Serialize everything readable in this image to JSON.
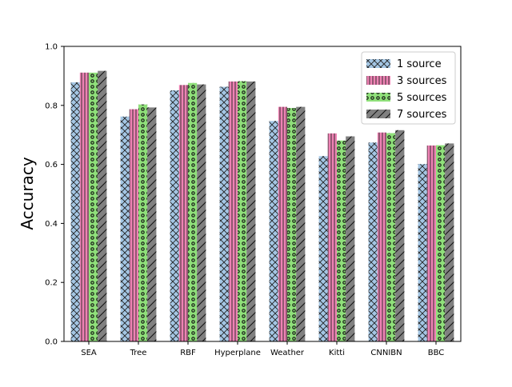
{
  "chart_data": {
    "type": "bar",
    "title": "",
    "xlabel": "",
    "ylabel": "Accuracy",
    "ylim": [
      0.0,
      1.0
    ],
    "yticks": [
      "0.0",
      "0.2",
      "0.4",
      "0.6",
      "0.8",
      "1.0"
    ],
    "grid": false,
    "legend_position": "top-right",
    "categories": [
      "SEA",
      "Tree",
      "RBF",
      "Hyperplane",
      "Weather",
      "Kitti",
      "CNNIBN",
      "BBC"
    ],
    "series": [
      {
        "name": "1 source",
        "color": "#a4c6e4",
        "hatch": "cross-hatch",
        "values": [
          0.878,
          0.762,
          0.851,
          0.863,
          0.747,
          0.628,
          0.674,
          0.601
        ]
      },
      {
        "name": "3 sources",
        "color": "#ee82b4",
        "hatch": "vertical-lines",
        "values": [
          0.911,
          0.787,
          0.869,
          0.881,
          0.795,
          0.705,
          0.708,
          0.664
        ]
      },
      {
        "name": "5 sources",
        "color": "#8fe07a",
        "hatch": "dots",
        "values": [
          0.911,
          0.803,
          0.876,
          0.882,
          0.791,
          0.681,
          0.706,
          0.665
        ]
      },
      {
        "name": "7 sources",
        "color": "#808080",
        "hatch": "diagonal-lines",
        "values": [
          0.917,
          0.793,
          0.871,
          0.881,
          0.795,
          0.695,
          0.716,
          0.671
        ]
      }
    ]
  }
}
